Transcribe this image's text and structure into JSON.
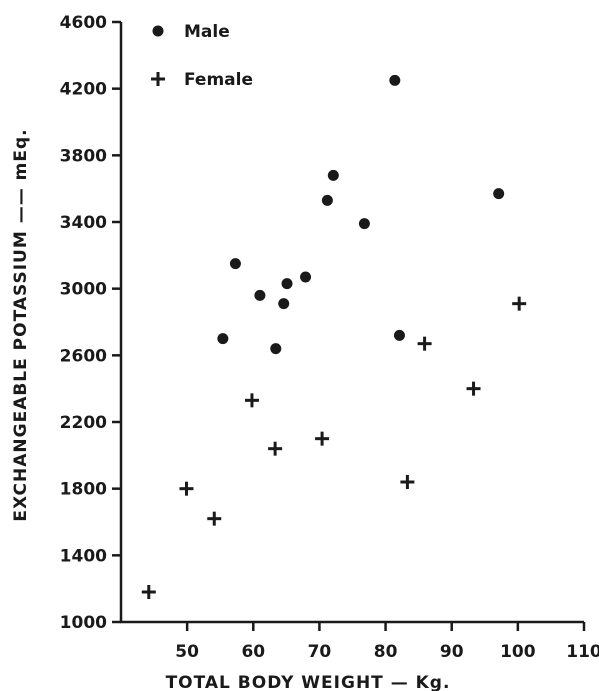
{
  "chart_data": {
    "type": "scatter",
    "title": "",
    "xlabel": "TOTAL BODY WEIGHT — Kg.",
    "ylabel": "EXCHANGEABLE POTASSIUM —— mEq.",
    "xlim": [
      40,
      110
    ],
    "ylim": [
      1000,
      4600
    ],
    "xticks": [
      50,
      60,
      70,
      80,
      90,
      100,
      110
    ],
    "yticks": [
      1000,
      1400,
      1800,
      2200,
      2600,
      3000,
      3400,
      3800,
      4200,
      4600
    ],
    "grid": false,
    "legend_position": "top-left",
    "series": [
      {
        "name": "Male",
        "marker": "circle",
        "color": "#1a1a1a",
        "points": [
          {
            "x": 55.4,
            "y": 2700
          },
          {
            "x": 57.3,
            "y": 3150
          },
          {
            "x": 61.0,
            "y": 2960
          },
          {
            "x": 63.4,
            "y": 2640
          },
          {
            "x": 64.6,
            "y": 2910
          },
          {
            "x": 65.1,
            "y": 3030
          },
          {
            "x": 67.9,
            "y": 3070
          },
          {
            "x": 71.2,
            "y": 3530
          },
          {
            "x": 72.1,
            "y": 3680
          },
          {
            "x": 76.8,
            "y": 3390
          },
          {
            "x": 81.4,
            "y": 4250
          },
          {
            "x": 82.1,
            "y": 2720
          },
          {
            "x": 97.1,
            "y": 3570
          }
        ]
      },
      {
        "name": "Female",
        "marker": "plus",
        "color": "#1a1a1a",
        "points": [
          {
            "x": 44.2,
            "y": 1180
          },
          {
            "x": 49.9,
            "y": 1800
          },
          {
            "x": 54.1,
            "y": 1620
          },
          {
            "x": 59.8,
            "y": 2330
          },
          {
            "x": 63.3,
            "y": 2040
          },
          {
            "x": 70.4,
            "y": 2100
          },
          {
            "x": 83.3,
            "y": 1840
          },
          {
            "x": 85.9,
            "y": 2670
          },
          {
            "x": 93.3,
            "y": 2400
          },
          {
            "x": 100.2,
            "y": 2910
          }
        ]
      }
    ]
  }
}
